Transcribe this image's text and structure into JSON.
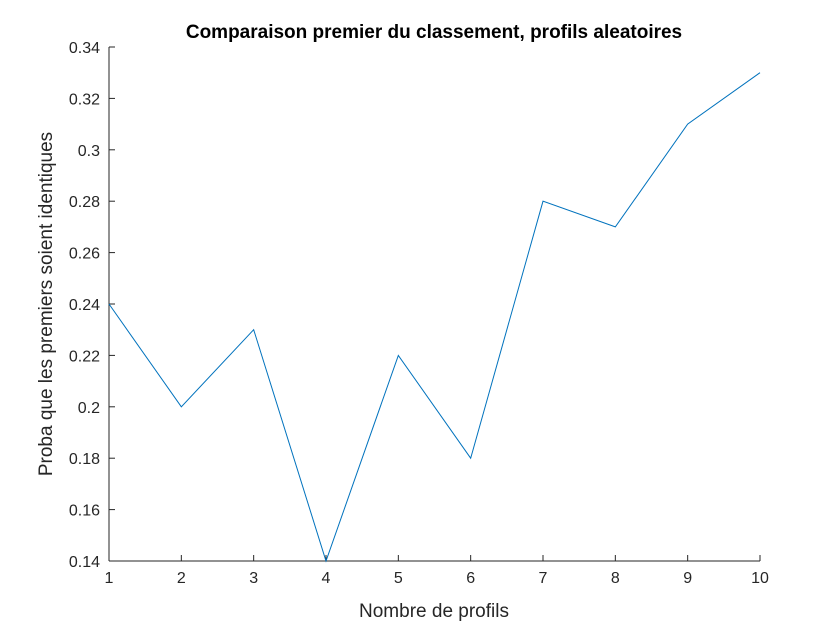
{
  "chart_data": {
    "type": "line",
    "title": "Comparaison premier du classement, profils aleatoires",
    "xlabel": "Nombre de profils",
    "ylabel": "Proba que les premiers soient identiques",
    "xlim": [
      1,
      10
    ],
    "ylim": [
      0.14,
      0.34
    ],
    "x_ticks": [
      "1",
      "2",
      "3",
      "4",
      "5",
      "6",
      "7",
      "8",
      "9",
      "10"
    ],
    "y_ticks": [
      "0.14",
      "0.16",
      "0.18",
      "0.2",
      "0.22",
      "0.24",
      "0.26",
      "0.28",
      "0.3",
      "0.32",
      "0.34"
    ],
    "grid": false,
    "series": [
      {
        "x": [
          1,
          2,
          3,
          4,
          5,
          6,
          7,
          8,
          9,
          10
        ],
        "values": [
          0.24,
          0.2,
          0.23,
          0.14,
          0.22,
          0.18,
          0.28,
          0.27,
          0.31,
          0.33
        ],
        "color": "#0072BD"
      }
    ]
  }
}
